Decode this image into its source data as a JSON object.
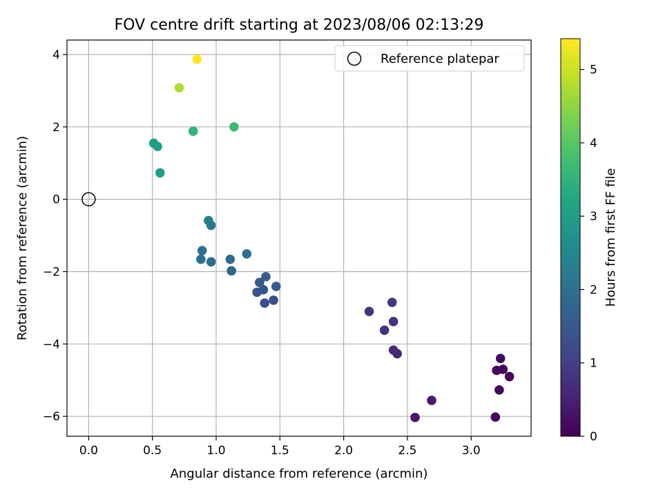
{
  "chart_data": {
    "type": "scatter",
    "title": "FOV centre drift starting at 2023/08/06 02:13:29",
    "xlabel": "Angular distance from reference (arcmin)",
    "ylabel": "Rotation from reference (arcmin)",
    "xlim": [
      -0.17,
      3.47
    ],
    "ylim": [
      -6.55,
      4.4
    ],
    "xticks": [
      0.0,
      0.5,
      1.0,
      1.5,
      2.0,
      2.5,
      3.0
    ],
    "xtick_labels": [
      "0.0",
      "0.5",
      "1.0",
      "1.5",
      "2.0",
      "2.5",
      "3.0"
    ],
    "yticks": [
      4,
      2,
      0,
      -2,
      -4,
      -6
    ],
    "ytick_labels": [
      "4",
      "2",
      "0",
      "−2",
      "−4",
      "−6"
    ],
    "grid": true,
    "legend": {
      "label": "Reference platepar",
      "position": "top-right"
    },
    "reference_point": {
      "x": 0.0,
      "y": 0.0
    },
    "colorbar": {
      "label": "Hours from first FF file",
      "colormap": "viridis",
      "range": [
        0,
        5.42
      ],
      "ticks": [
        0,
        1,
        2,
        3,
        4,
        5
      ],
      "tick_labels": [
        "0",
        "1",
        "2",
        "3",
        "4",
        "5"
      ]
    },
    "points": [
      {
        "x": 3.19,
        "y": -6.02,
        "c": 0.05
      },
      {
        "x": 2.56,
        "y": -6.03,
        "c": 0.35
      },
      {
        "x": 2.69,
        "y": -5.56,
        "c": 0.4
      },
      {
        "x": 3.22,
        "y": -5.27,
        "c": 0.1
      },
      {
        "x": 3.3,
        "y": -4.9,
        "c": 0.05
      },
      {
        "x": 3.2,
        "y": -4.73,
        "c": 0.12
      },
      {
        "x": 3.25,
        "y": -4.7,
        "c": 0.08
      },
      {
        "x": 3.23,
        "y": -4.4,
        "c": 0.15
      },
      {
        "x": 2.42,
        "y": -4.27,
        "c": 0.6
      },
      {
        "x": 2.39,
        "y": -4.17,
        "c": 0.65
      },
      {
        "x": 2.32,
        "y": -3.62,
        "c": 0.75
      },
      {
        "x": 2.39,
        "y": -3.38,
        "c": 0.8
      },
      {
        "x": 2.2,
        "y": -3.1,
        "c": 0.85
      },
      {
        "x": 2.38,
        "y": -2.85,
        "c": 0.9
      },
      {
        "x": 1.38,
        "y": -2.87,
        "c": 1.3
      },
      {
        "x": 1.45,
        "y": -2.79,
        "c": 1.35
      },
      {
        "x": 1.32,
        "y": -2.57,
        "c": 1.4
      },
      {
        "x": 1.37,
        "y": -2.5,
        "c": 1.45
      },
      {
        "x": 1.47,
        "y": -2.41,
        "c": 1.5
      },
      {
        "x": 1.34,
        "y": -2.3,
        "c": 1.55
      },
      {
        "x": 1.39,
        "y": -2.14,
        "c": 1.6
      },
      {
        "x": 1.12,
        "y": -1.98,
        "c": 1.8
      },
      {
        "x": 0.96,
        "y": -1.73,
        "c": 1.9
      },
      {
        "x": 0.88,
        "y": -1.66,
        "c": 2.0
      },
      {
        "x": 1.11,
        "y": -1.66,
        "c": 1.85
      },
      {
        "x": 0.89,
        "y": -1.42,
        "c": 2.05
      },
      {
        "x": 1.24,
        "y": -1.51,
        "c": 1.95
      },
      {
        "x": 0.96,
        "y": -0.72,
        "c": 2.2
      },
      {
        "x": 0.94,
        "y": -0.59,
        "c": 2.25
      },
      {
        "x": 0.56,
        "y": 0.73,
        "c": 2.95
      },
      {
        "x": 0.54,
        "y": 1.46,
        "c": 3.0
      },
      {
        "x": 0.51,
        "y": 1.55,
        "c": 3.05
      },
      {
        "x": 0.82,
        "y": 1.88,
        "c": 3.5
      },
      {
        "x": 1.14,
        "y": 2.0,
        "c": 3.7
      },
      {
        "x": 0.71,
        "y": 3.08,
        "c": 4.75
      },
      {
        "x": 0.85,
        "y": 3.87,
        "c": 5.42
      }
    ]
  }
}
